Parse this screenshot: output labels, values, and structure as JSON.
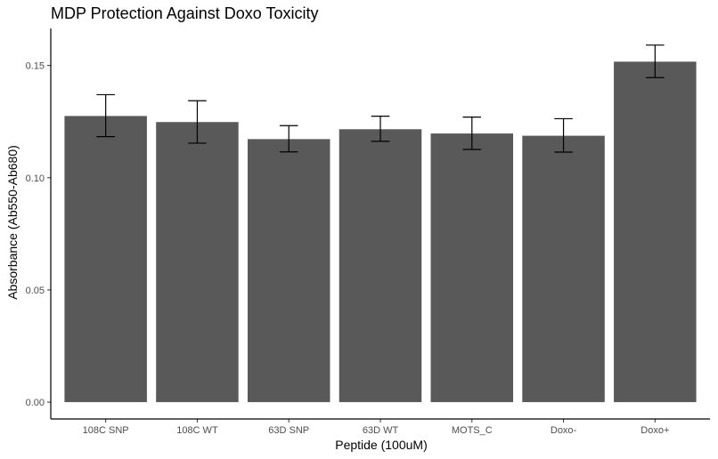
{
  "chart_data": {
    "type": "bar",
    "title": "MDP Protection Against Doxo Toxicity",
    "xlabel": "Peptide (100uM)",
    "ylabel": "Absorbance (Ab550-Ab680)",
    "categories": [
      "108C SNP",
      "108C WT",
      "63D SNP",
      "63D WT",
      "MOTS_C",
      "Doxo-",
      "Doxo+"
    ],
    "values": [
      0.1275,
      0.1248,
      0.1172,
      0.1216,
      0.1197,
      0.1187,
      0.1517
    ],
    "error_low": [
      0.1183,
      0.1154,
      0.1115,
      0.1162,
      0.1126,
      0.1114,
      0.1446
    ],
    "error_high": [
      0.137,
      0.1343,
      0.1232,
      0.1274,
      0.127,
      0.1263,
      0.1591
    ],
    "yticks": [
      "0.00",
      "0.05",
      "0.10",
      "0.15"
    ],
    "ylim": [
      -0.0075,
      0.1665
    ],
    "grid": false,
    "legend": "none",
    "bar_color": "#595959",
    "errorbar_color": "#000000"
  }
}
